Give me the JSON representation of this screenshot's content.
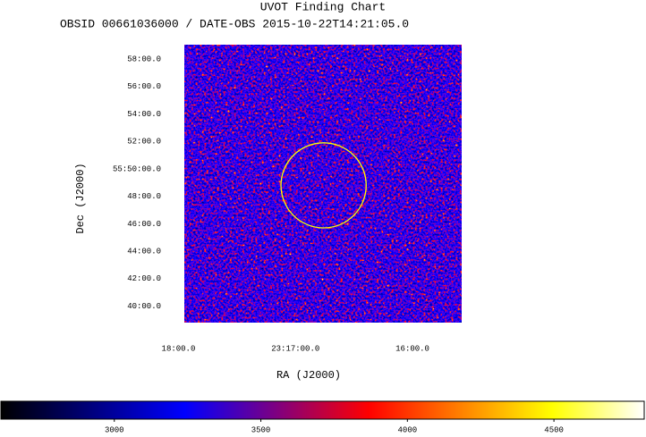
{
  "chart_data": {
    "type": "image",
    "title": "UVOT Finding Chart",
    "subtitle": "OBSID 00661036000 / DATE-OBS 2015-10-22T14:21:05.0",
    "xlabel": "RA (J2000)",
    "ylabel": "Dec (J2000)",
    "xlim": [
      17.95,
      15.58
    ],
    "xticks": [
      {
        "value": 18,
        "label": "18:00.0"
      },
      {
        "value": 17,
        "label": "23:17:00.0"
      },
      {
        "value": 16,
        "label": "16:00.0"
      }
    ],
    "ylim": [
      38.8,
      59.05
    ],
    "yticks": [
      {
        "value": 58,
        "label": "58:00.0"
      },
      {
        "value": 56,
        "label": "56:00.0"
      },
      {
        "value": 54,
        "label": "54:00.0"
      },
      {
        "value": 52,
        "label": "52:00.0"
      },
      {
        "value": 50,
        "label": "55:50:00.0"
      },
      {
        "value": 48,
        "label": "48:00.0"
      },
      {
        "value": 46,
        "label": "46:00.0"
      },
      {
        "value": 44,
        "label": "44:00.0"
      },
      {
        "value": 42,
        "label": "42:00.0"
      },
      {
        "value": 40,
        "label": "40:00.0"
      }
    ],
    "circle": {
      "ra": 16.76,
      "dec": 48.8,
      "radius": 3.1,
      "color": "#ffff00"
    },
    "colorbar": {
      "lim": [
        2613,
        4808
      ],
      "ticks": [
        3000,
        3500,
        4000,
        4500
      ],
      "colormap": [
        "#000000",
        "#00007f",
        "#0000ff",
        "#7f0080",
        "#ff0000",
        "#ff8000",
        "#ffff00",
        "#ffffff"
      ]
    }
  }
}
